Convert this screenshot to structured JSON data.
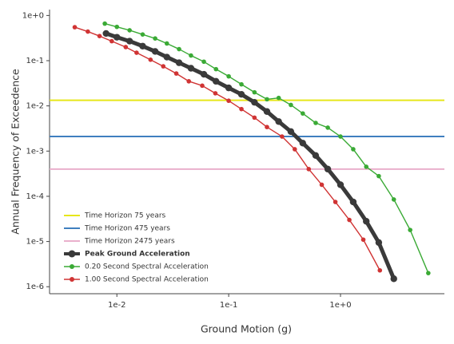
{
  "chart_data": {
    "type": "line",
    "xlabel": "Ground Motion (g)",
    "ylabel": "Annual Frequency of Exceedence",
    "xscale": "log",
    "yscale": "log",
    "xlim": [
      0.0025,
      8.5
    ],
    "ylim": [
      7e-07,
      1.35
    ],
    "xticks": [
      {
        "value": 0.01,
        "label": "1e-2"
      },
      {
        "value": 0.1,
        "label": "1e-1"
      },
      {
        "value": 1,
        "label": "1e+0"
      }
    ],
    "yticks": [
      {
        "value": 1,
        "label": "1e+0"
      },
      {
        "value": 0.1,
        "label": "1e-1"
      },
      {
        "value": 0.01,
        "label": "1e-2"
      },
      {
        "value": 0.001,
        "label": "1e-3"
      },
      {
        "value": 0.0001,
        "label": "1e-4"
      },
      {
        "value": 1e-05,
        "label": "1e-5"
      },
      {
        "value": 1e-06,
        "label": "1e-6"
      }
    ],
    "grid": false,
    "legend": "lower left",
    "reference_lines": [
      {
        "name": "Time Horizon  75 years",
        "color": "#e6e61a",
        "value": 0.0133
      },
      {
        "name": "Time Horizon 475 years",
        "color": "#3f7fbf",
        "value": 0.0021
      },
      {
        "name": "Time Horizon 2475 years",
        "color": "#eab0cc",
        "value": 0.0004
      }
    ],
    "series": [
      {
        "name": "Peak Ground Acceleration",
        "color": "#3a3a3a",
        "x": [
          0.008,
          0.01,
          0.013,
          0.017,
          0.022,
          0.028,
          0.036,
          0.046,
          0.06,
          0.077,
          0.1,
          0.13,
          0.17,
          0.22,
          0.28,
          0.36,
          0.46,
          0.6,
          0.77,
          1.0,
          1.3,
          1.7,
          2.2,
          3.0
        ],
        "values": [
          0.4,
          0.33,
          0.27,
          0.21,
          0.16,
          0.12,
          0.09,
          0.068,
          0.05,
          0.035,
          0.025,
          0.018,
          0.012,
          0.0075,
          0.0045,
          0.0027,
          0.0015,
          0.0008,
          0.0004,
          0.00018,
          7.5e-05,
          2.8e-05,
          9.5e-06,
          1.5e-06
        ]
      },
      {
        "name": "0.20 Second Spectral Acceleration",
        "color": "#3aaa35",
        "x": [
          0.0078,
          0.01,
          0.013,
          0.017,
          0.022,
          0.028,
          0.036,
          0.046,
          0.06,
          0.077,
          0.1,
          0.13,
          0.17,
          0.22,
          0.28,
          0.36,
          0.46,
          0.6,
          0.77,
          1.0,
          1.3,
          1.7,
          2.2,
          3.0,
          4.2,
          6.1
        ],
        "values": [
          0.66,
          0.56,
          0.47,
          0.38,
          0.31,
          0.24,
          0.18,
          0.13,
          0.095,
          0.065,
          0.045,
          0.03,
          0.02,
          0.014,
          0.015,
          0.0105,
          0.0068,
          0.0042,
          0.0033,
          0.0021,
          0.0011,
          0.00045,
          0.00028,
          8.5e-05,
          1.8e-05,
          2e-06
        ]
      },
      {
        "name": "1.00 Second Spectral Acceleration",
        "color": "#d03434",
        "x": [
          0.0042,
          0.0055,
          0.007,
          0.009,
          0.012,
          0.015,
          0.02,
          0.026,
          0.034,
          0.044,
          0.058,
          0.076,
          0.1,
          0.13,
          0.17,
          0.22,
          0.3,
          0.39,
          0.52,
          0.68,
          0.9,
          1.2,
          1.6,
          2.25
        ],
        "values": [
          0.55,
          0.44,
          0.35,
          0.27,
          0.2,
          0.15,
          0.105,
          0.075,
          0.052,
          0.035,
          0.028,
          0.019,
          0.013,
          0.0085,
          0.0055,
          0.0034,
          0.0021,
          0.0011,
          0.0004,
          0.00018,
          7.5e-05,
          3e-05,
          1.1e-05,
          2.3e-06
        ]
      }
    ]
  }
}
